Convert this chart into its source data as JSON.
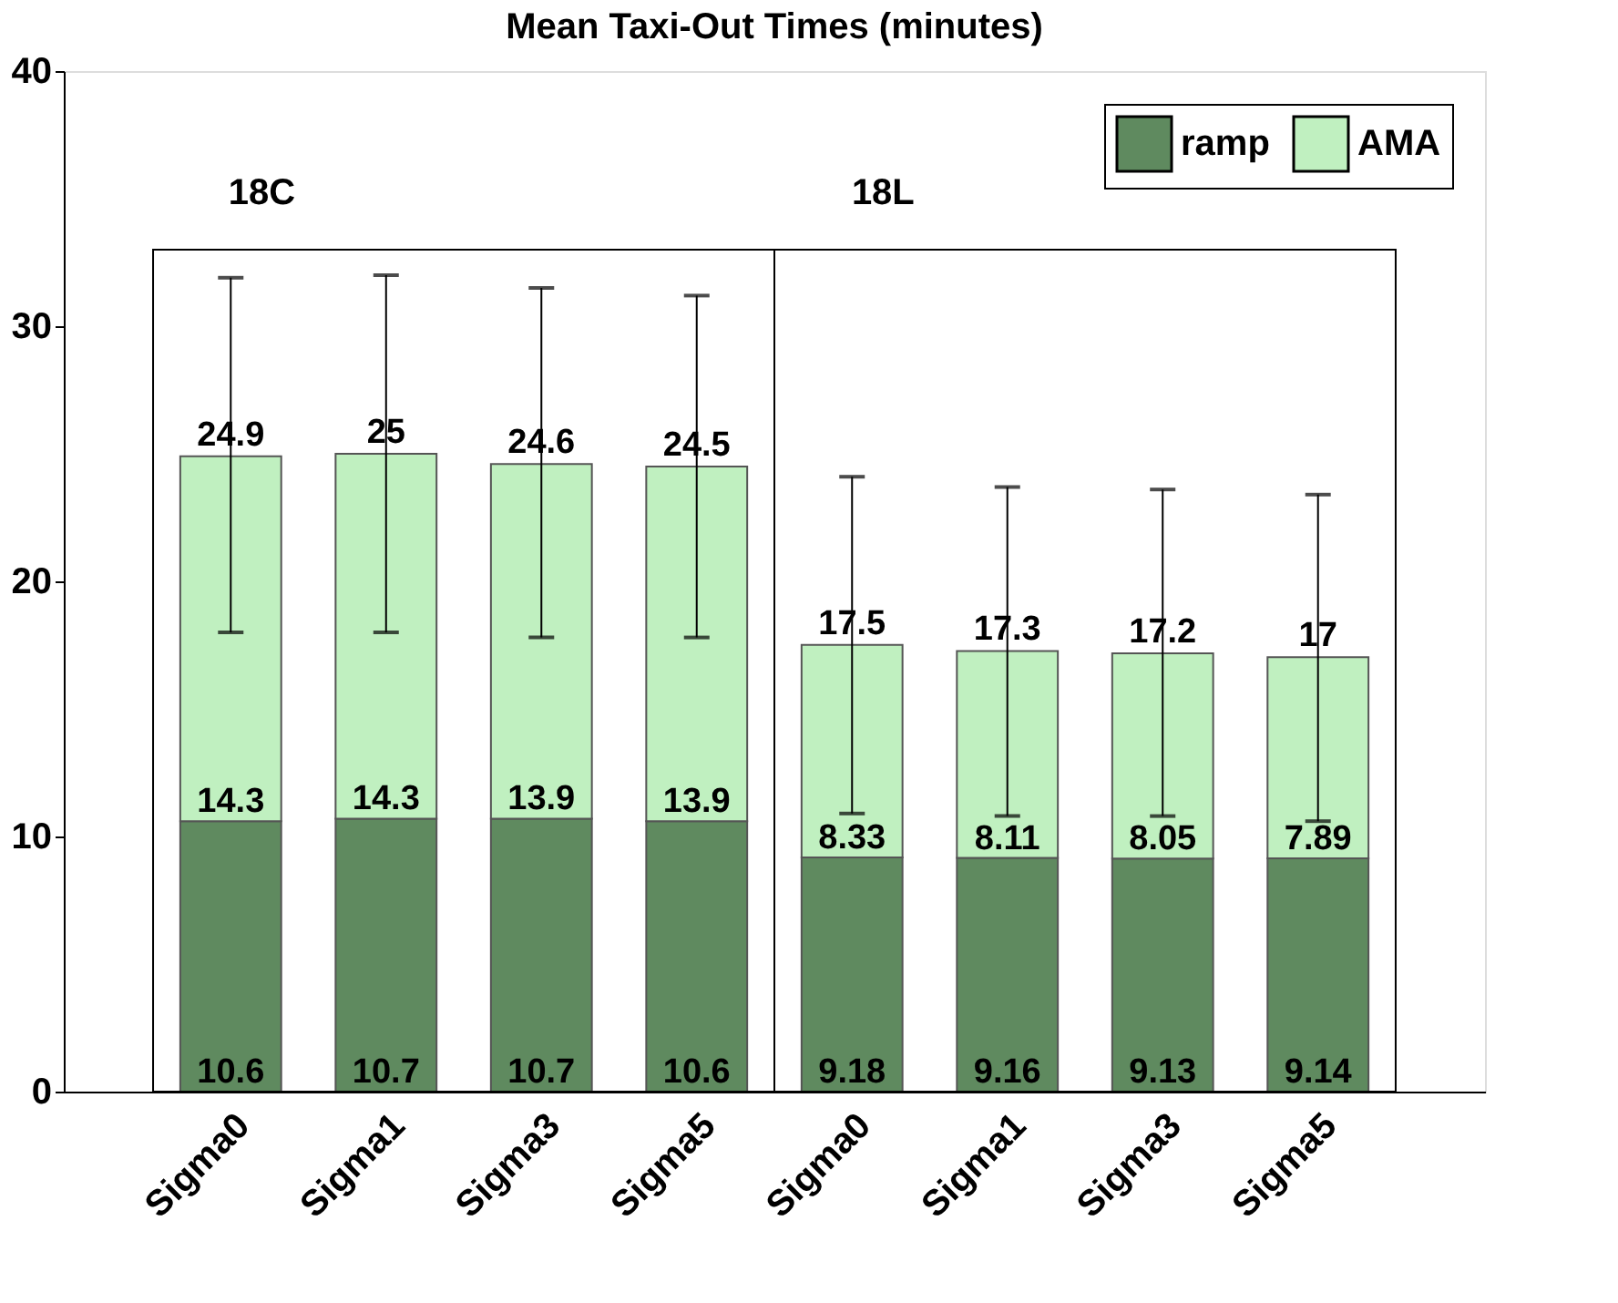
{
  "chart_data": {
    "type": "bar",
    "title": "Mean Taxi-Out Times (minutes)",
    "categories": [
      "Sigma0",
      "Sigma1",
      "Sigma3",
      "Sigma5",
      "Sigma0",
      "Sigma1",
      "Sigma3",
      "Sigma5"
    ],
    "stacked": true,
    "series": [
      {
        "name": "ramp",
        "color": "#5f8a5f",
        "values": [
          10.6,
          10.7,
          10.7,
          10.6,
          9.18,
          9.16,
          9.13,
          9.14
        ]
      },
      {
        "name": "AMA",
        "color": "#c0f0c0",
        "values": [
          14.3,
          14.3,
          13.9,
          13.9,
          8.33,
          8.11,
          8.05,
          7.89
        ],
        "errors": [
          [
            18.0,
            31.9
          ],
          [
            18.0,
            32.0
          ],
          [
            17.8,
            31.5
          ],
          [
            17.8,
            31.2
          ],
          [
            10.9,
            24.1
          ],
          [
            10.8,
            23.7
          ],
          [
            10.8,
            23.6
          ],
          [
            10.6,
            23.4
          ]
        ]
      }
    ],
    "totals": [
      "24.9",
      "25",
      "24.6",
      "24.5",
      "17.5",
      "17.3",
      "17.2",
      "17"
    ],
    "data_labels": true,
    "annotations": [
      "18C",
      "18L"
    ],
    "ylim": [
      0,
      40
    ],
    "yticks": [
      0,
      10,
      20,
      30,
      40
    ],
    "grid": false,
    "legend": "top right"
  }
}
